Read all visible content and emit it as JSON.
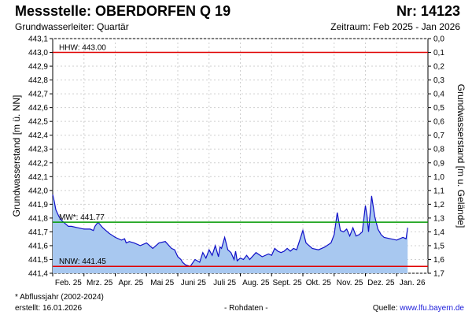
{
  "header": {
    "title": "Messstelle: OBERDORFEN Q 19",
    "number": "Nr: 14123",
    "aquifer": "Grundwasserleiter: Quartär",
    "period": "Zeitraum: Feb 2025 - Jan 2026"
  },
  "footer": {
    "note": "* Abflussjahr (2002-2024)",
    "created": "erstellt:  16.01.2026",
    "raw": "- Rohdaten -",
    "source_label": "Quelle: ",
    "source_link": "www.lfu.bayern.de"
  },
  "colors": {
    "hhw": "#e00000",
    "nnw": "#e00000",
    "mw": "#009a00",
    "series_line": "#1010c8",
    "series_fill": "#a8c8f0"
  },
  "chart_data": {
    "type": "area",
    "ylabel_left": "Grundwasserstand [m ü. NN]",
    "ylabel_right": "Grundwasserstand [m u. Gelände]",
    "ylim_left": [
      441.4,
      443.1
    ],
    "ylim_right": [
      1.7,
      0.0
    ],
    "left_ticks": [
      "441,4",
      "441,5",
      "441,6",
      "441,7",
      "441,8",
      "441,9",
      "442,0",
      "442,1",
      "442,2",
      "442,3",
      "442,4",
      "442,5",
      "442,6",
      "442,7",
      "442,8",
      "442,9",
      "443,0",
      "443,1"
    ],
    "right_ticks": [
      "1,7",
      "1,6",
      "1,5",
      "1,4",
      "1,3",
      "1,2",
      "1,1",
      "1,0",
      "0,9",
      "0,8",
      "0,7",
      "0,6",
      "0,5",
      "0,4",
      "0,3",
      "0,2",
      "0,1",
      "0,0"
    ],
    "months": [
      "Feb. 25",
      "Mrz. 25",
      "Apr. 25",
      "Mai 25",
      "Juni 25",
      "Juli 25",
      "Aug. 25",
      "Sept. 25",
      "Okt. 25",
      "Nov. 25",
      "Dez. 25",
      "Jan. 26"
    ],
    "grid": true,
    "reference_lines": [
      {
        "key": "hhw",
        "label": "HHW: 443.00",
        "value": 443.0
      },
      {
        "key": "mw",
        "label": "MW*: 441.77",
        "value": 441.77
      },
      {
        "key": "nnw",
        "label": "NNW: 441.45",
        "value": 441.45
      }
    ],
    "series": [
      {
        "x": [
          0,
          0.05,
          0.1,
          0.2,
          0.3,
          0.4,
          0.5,
          0.6,
          0.8,
          1.0,
          1.2,
          1.3,
          1.35,
          1.45,
          1.6,
          1.8,
          2.0,
          2.2,
          2.3,
          2.35,
          2.45,
          2.6,
          2.8,
          3.0,
          3.2,
          3.4,
          3.6,
          3.8,
          3.9,
          4.0,
          4.1,
          4.15,
          4.25,
          4.4,
          4.55,
          4.7,
          4.8,
          4.9,
          5.0,
          5.1,
          5.2,
          5.3,
          5.35,
          5.4,
          5.5,
          5.6,
          5.7,
          5.8,
          5.85,
          5.9,
          6.0,
          6.1,
          6.2,
          6.3,
          6.5,
          6.7,
          6.9,
          7.0,
          7.1,
          7.2,
          7.3,
          7.4,
          7.5,
          7.6,
          7.7,
          7.8,
          8.0,
          8.1,
          8.3,
          8.5,
          8.7,
          8.9,
          9.0,
          9.1,
          9.2,
          9.3,
          9.4,
          9.5,
          9.6,
          9.7,
          9.8,
          9.9,
          10.0,
          10.05,
          10.1,
          10.2,
          10.3,
          10.4,
          10.5,
          10.6,
          10.8,
          11.0,
          11.2,
          11.3,
          11.35
        ],
        "values": [
          441.97,
          441.92,
          441.86,
          441.81,
          441.78,
          441.76,
          441.74,
          441.74,
          441.73,
          441.72,
          441.72,
          441.71,
          441.74,
          441.77,
          441.73,
          441.69,
          441.66,
          441.64,
          441.65,
          441.62,
          441.63,
          441.62,
          441.6,
          441.62,
          441.58,
          441.62,
          441.63,
          441.58,
          441.57,
          441.52,
          441.5,
          441.48,
          441.46,
          441.45,
          441.5,
          441.48,
          441.55,
          441.51,
          441.57,
          441.53,
          441.6,
          441.52,
          441.59,
          441.58,
          441.66,
          441.57,
          441.55,
          441.5,
          441.56,
          441.49,
          441.51,
          441.5,
          441.53,
          441.5,
          441.55,
          441.52,
          441.54,
          441.53,
          441.58,
          441.56,
          441.55,
          441.56,
          441.58,
          441.56,
          441.58,
          441.57,
          441.71,
          441.62,
          441.58,
          441.57,
          441.59,
          441.62,
          441.68,
          441.84,
          441.71,
          441.7,
          441.72,
          441.67,
          441.73,
          441.67,
          441.68,
          441.7,
          441.89,
          441.82,
          441.7,
          441.96,
          441.81,
          441.72,
          441.68,
          441.66,
          441.65,
          441.64,
          441.66,
          441.65,
          441.73
        ]
      }
    ]
  }
}
